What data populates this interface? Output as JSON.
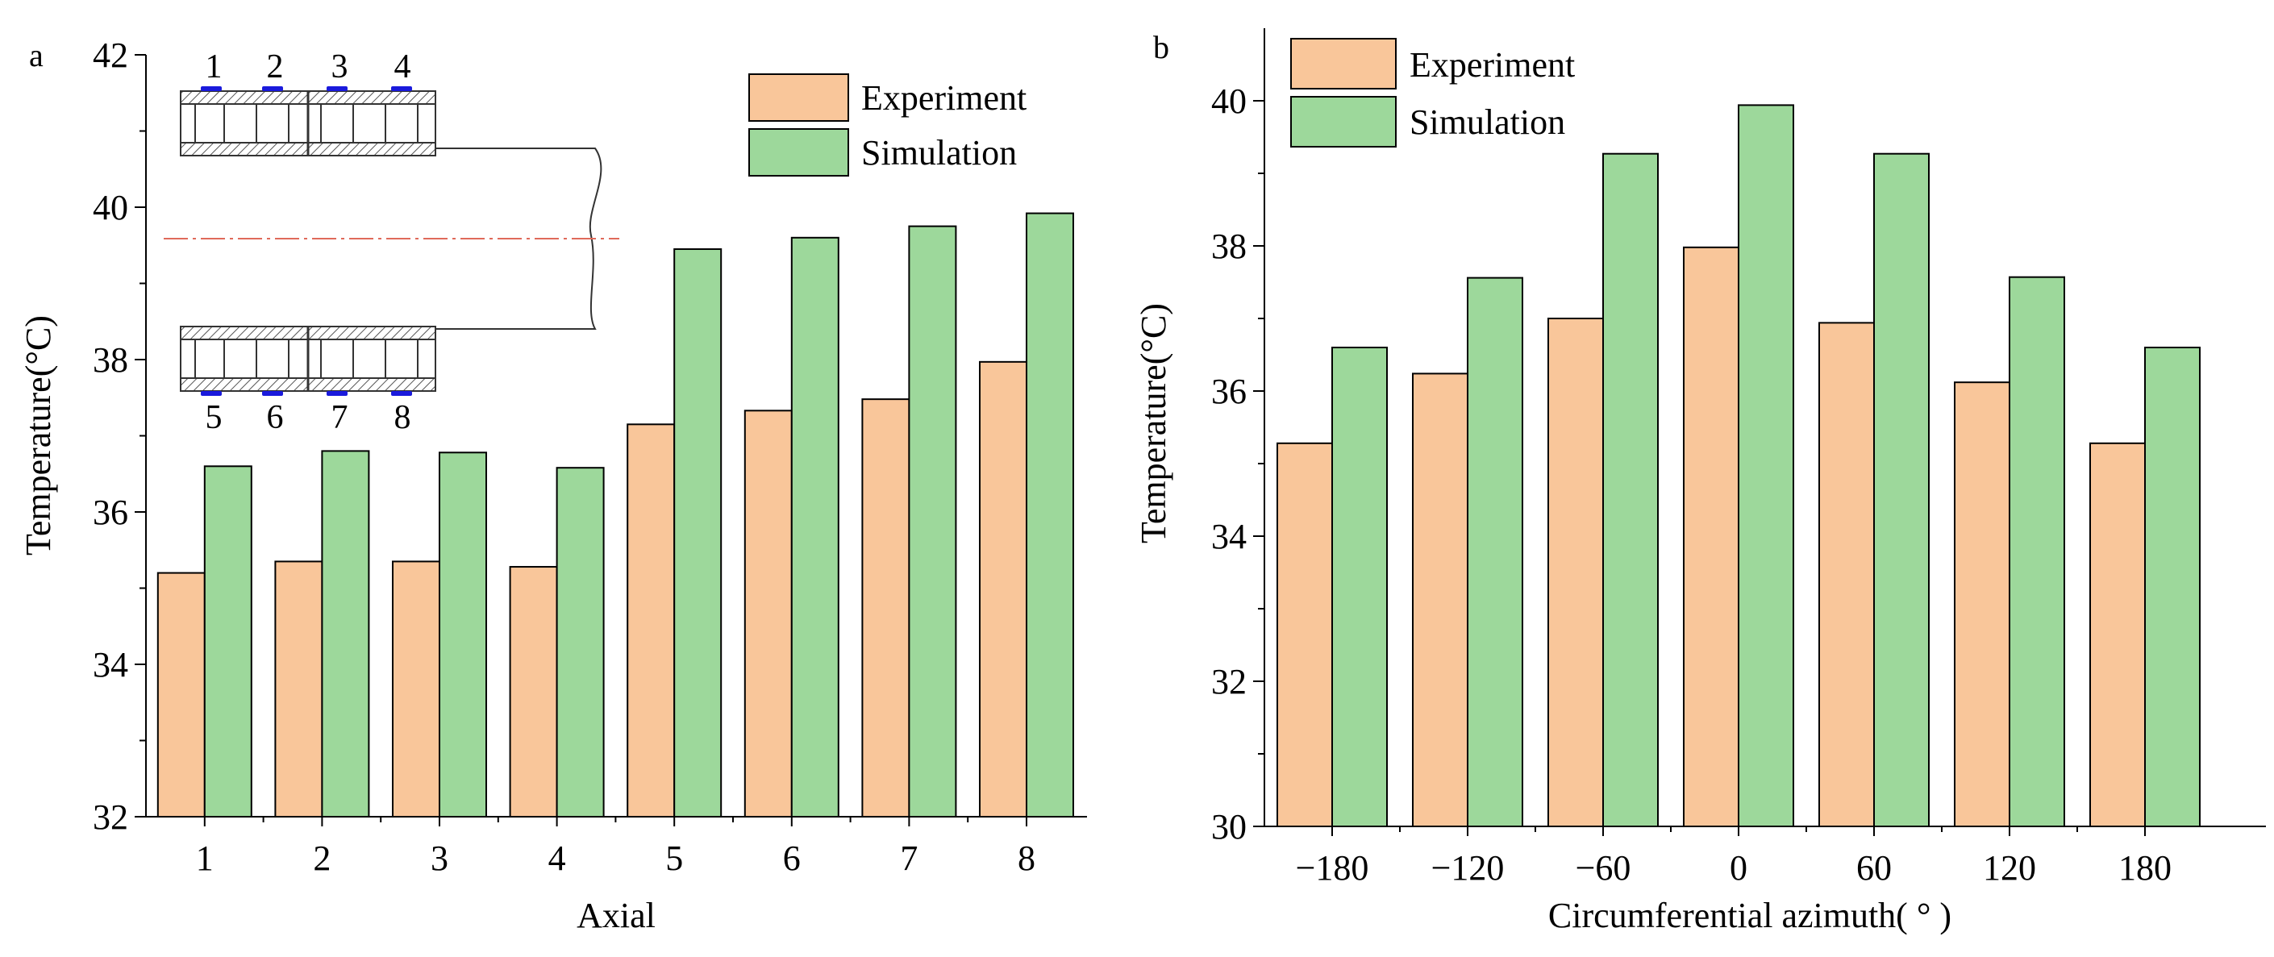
{
  "chart_data": [
    {
      "panel_label": "a",
      "type": "bar",
      "title": "",
      "xlabel": "Axial",
      "ylabel": "Temperature(°C)",
      "ylim": [
        32,
        42
      ],
      "yticks": [
        "32",
        "34",
        "36",
        "38",
        "40",
        "42"
      ],
      "categories": [
        "1",
        "2",
        "3",
        "4",
        "5",
        "6",
        "7",
        "8"
      ],
      "series": [
        {
          "name": "Experiment",
          "color": "#f9c69a",
          "values": [
            35.2,
            35.35,
            35.35,
            35.28,
            37.15,
            37.33,
            37.48,
            37.97
          ]
        },
        {
          "name": "Simulation",
          "color": "#9dd89b",
          "values": [
            36.6,
            36.8,
            36.78,
            36.58,
            39.45,
            39.6,
            39.75,
            39.92
          ]
        }
      ],
      "legend_position": "top-right",
      "inset": {
        "description": "bearing cross-section sketch",
        "top_labels": [
          "1",
          "2",
          "3",
          "4"
        ],
        "bottom_labels": [
          "5",
          "6",
          "7",
          "8"
        ],
        "sensor_color": "#1a1adc",
        "axis_color": "#e06a5a"
      }
    },
    {
      "panel_label": "b",
      "type": "bar",
      "title": "",
      "xlabel": "Circumferential azimuth( ° )",
      "ylabel": "Temperature(°C)",
      "ylim": [
        30,
        41
      ],
      "yticks": [
        "30",
        "32",
        "34",
        "36",
        "38",
        "40"
      ],
      "categories": [
        "−180",
        "−120",
        "−60",
        "0",
        "60",
        "120",
        "180"
      ],
      "series": [
        {
          "name": "Experiment",
          "color": "#f9c69a",
          "values": [
            35.28,
            36.24,
            37.0,
            37.98,
            36.94,
            36.12,
            35.28
          ]
        },
        {
          "name": "Simulation",
          "color": "#9dd89b",
          "values": [
            36.6,
            37.56,
            39.27,
            39.94,
            39.27,
            37.57,
            36.6
          ]
        }
      ],
      "legend_position": "top-left"
    }
  ]
}
